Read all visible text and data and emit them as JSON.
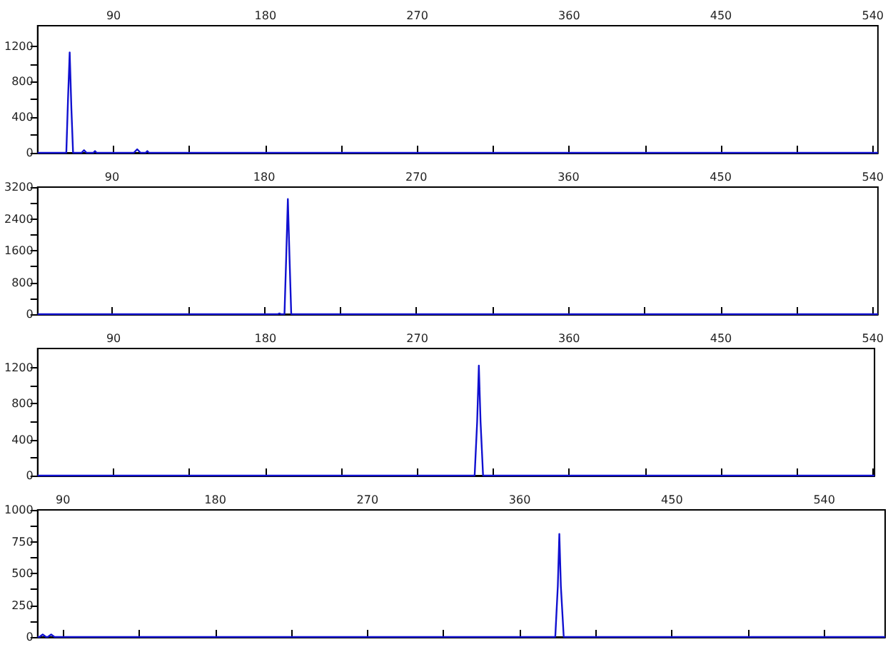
{
  "chart_data": [
    {
      "type": "line",
      "xlim": [
        45,
        543
      ],
      "ylim": [
        0,
        1430
      ],
      "grid": false,
      "xticks": [
        90,
        {
          "value": 135,
          "label": null
        },
        180,
        {
          "value": 225,
          "label": null
        },
        270,
        {
          "value": 315,
          "label": null
        },
        360,
        {
          "value": 405,
          "label": null
        },
        450,
        {
          "value": 495,
          "label": null
        },
        540
      ],
      "yticks": [
        0,
        {
          "value": 200,
          "label": null
        },
        400,
        {
          "value": 600,
          "label": null
        },
        800,
        {
          "value": 1000,
          "label": null
        },
        1200
      ],
      "series": [
        {
          "color": "#1010d0",
          "x": [
            45,
            62,
            63,
            64,
            65,
            66,
            71,
            72.5,
            74,
            78,
            79,
            80,
            102,
            104,
            106,
            109,
            110,
            111,
            543
          ],
          "values": [
            0,
            0,
            600,
            1130,
            500,
            0,
            0,
            30,
            0,
            0,
            20,
            0,
            0,
            40,
            0,
            0,
            20,
            0,
            0
          ]
        }
      ]
    },
    {
      "type": "line",
      "xlim": [
        46,
        543
      ],
      "ylim": [
        0,
        3200
      ],
      "grid": false,
      "xticks": [
        90,
        {
          "value": 135,
          "label": null
        },
        180,
        {
          "value": 225,
          "label": null
        },
        270,
        {
          "value": 315,
          "label": null
        },
        360,
        {
          "value": 405,
          "label": null
        },
        450,
        {
          "value": 495,
          "label": null
        },
        540
      ],
      "yticks": [
        0,
        {
          "value": 400,
          "label": null
        },
        800,
        {
          "value": 1200,
          "label": null
        },
        1600,
        {
          "value": 2000,
          "label": null
        },
        2400,
        {
          "value": 2800,
          "label": null
        },
        3200
      ],
      "series": [
        {
          "color": "#1010d0",
          "x": [
            46,
            188,
            189,
            190,
            192,
            193,
            194,
            195,
            196,
            543
          ],
          "values": [
            0,
            0,
            20,
            0,
            0,
            1400,
            2900,
            1400,
            0,
            0
          ]
        }
      ]
    },
    {
      "type": "line",
      "xlim": [
        45,
        541
      ],
      "ylim": [
        0,
        1410
      ],
      "grid": false,
      "xticks": [
        90,
        {
          "value": 135,
          "label": null
        },
        180,
        {
          "value": 225,
          "label": null
        },
        270,
        {
          "value": 315,
          "label": null
        },
        360,
        {
          "value": 405,
          "label": null
        },
        450,
        {
          "value": 495,
          "label": null
        },
        540
      ],
      "yticks": [
        0,
        {
          "value": 200,
          "label": null
        },
        400,
        {
          "value": 600,
          "label": null
        },
        800,
        {
          "value": 1000,
          "label": null
        },
        1200
      ],
      "series": [
        {
          "color": "#1010d0",
          "x": [
            45,
            304,
            305.5,
            306.5,
            307.5,
            309,
            541
          ],
          "values": [
            0,
            0,
            600,
            1220,
            600,
            0,
            0
          ]
        }
      ]
    },
    {
      "type": "line",
      "xlim": [
        75,
        576
      ],
      "ylim": [
        0,
        1000
      ],
      "grid": false,
      "xticks": [
        90,
        {
          "value": 135,
          "label": null
        },
        180,
        {
          "value": 225,
          "label": null
        },
        270,
        {
          "value": 315,
          "label": null
        },
        360,
        {
          "value": 405,
          "label": null
        },
        450,
        {
          "value": 495,
          "label": null
        },
        540
      ],
      "yticks": [
        0,
        {
          "value": 125,
          "label": null
        },
        250,
        {
          "value": 375,
          "label": null
        },
        500,
        {
          "value": 625,
          "label": null
        },
        750,
        {
          "value": 875,
          "label": null
        },
        1000
      ],
      "series": [
        {
          "color": "#1010d0",
          "x": [
            75,
            76,
            78,
            80,
            81,
            83,
            85,
            381,
            382.5,
            383.4,
            384.3,
            386,
            576
          ],
          "values": [
            0,
            0,
            20,
            0,
            0,
            20,
            0,
            0,
            400,
            810,
            400,
            0,
            0
          ]
        }
      ]
    }
  ]
}
